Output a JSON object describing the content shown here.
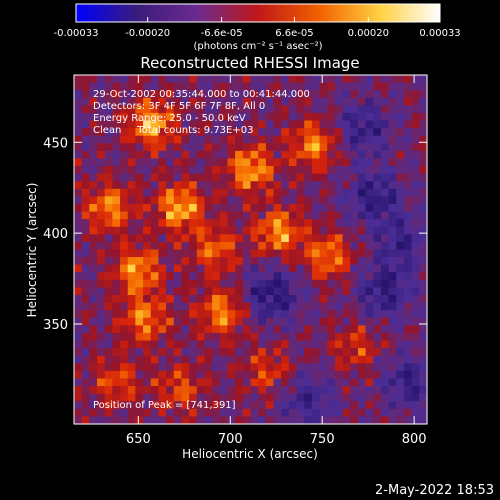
{
  "chart_data": {
    "type": "heatmap",
    "title": "Reconstructed RHESSI Image",
    "xlabel": "Heliocentric X (arcsec)",
    "ylabel": "Heliocentric Y (arcsec)",
    "xlim": [
      615,
      807
    ],
    "ylim": [
      295,
      487
    ],
    "x_ticks": [
      650,
      700,
      750,
      800
    ],
    "y_ticks": [
      350,
      400,
      450
    ],
    "colorbar": {
      "ticks": [
        "-0.00033",
        "-0.00020",
        "-6.6e-05",
        "6.6e-05",
        "0.00020",
        "0.00033"
      ],
      "tick_values": [
        -0.00033,
        -0.0002,
        -6.6e-05,
        6.6e-05,
        0.0002,
        0.00033
      ],
      "range": [
        -0.00033,
        0.00033
      ],
      "units_label": "(photons cm⁻² s⁻¹ asec⁻²)",
      "colors": [
        "#0000ff",
        "#3a1c7a",
        "#6b2a90",
        "#c01818",
        "#f06000",
        "#ffd040",
        "#ffffff"
      ]
    },
    "annotations": [
      "29-Oct-2002 00:35:44.000 to 00:41:44.000",
      "Detectors: 3F 4F 5F 6F 7F 8F, All 0",
      "Energy Range: 25.0 - 50.0 keV",
      "Clean     Total counts: 9.73E+03"
    ],
    "peak_label": "Position of Peak = [741,391]",
    "peak": [
      741,
      391
    ],
    "grid": false,
    "legend": "none"
  },
  "footer": {
    "date": "2-May-2022 18:53"
  }
}
